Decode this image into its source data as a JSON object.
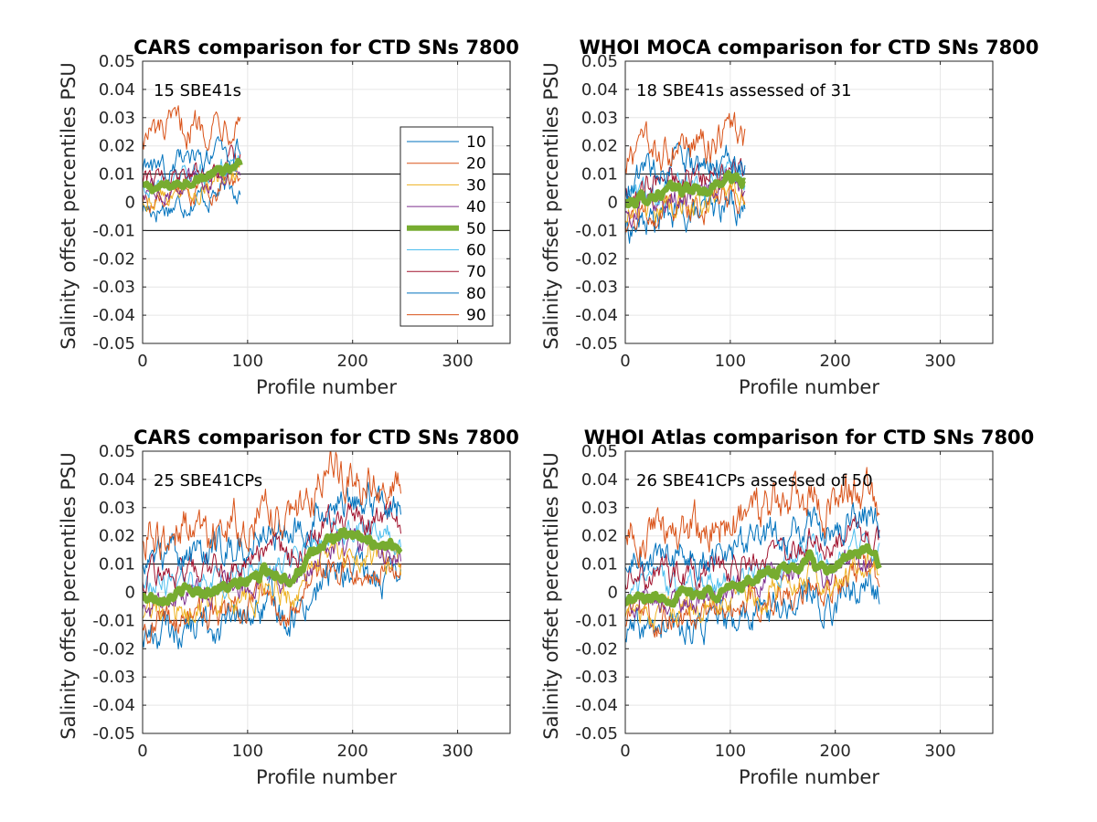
{
  "figure_type": "salinity offset percentile panels",
  "chart_data": [
    {
      "type": "line",
      "title": "CARS comparison for CTD SNs 7800",
      "annotation": "15 SBE41s",
      "xlabel": "Profile number",
      "ylabel": "Salinity offset percentiles PSU",
      "xlim": [
        0,
        350
      ],
      "ylim": [
        -0.05,
        0.05
      ],
      "xticks": [
        "0",
        "100",
        "200",
        "300"
      ],
      "yticks": [
        "-0.05",
        "-0.04",
        "-0.03",
        "-0.02",
        "-0.01",
        "0",
        "0.01",
        "0.02",
        "0.03",
        "0.04",
        "0.05"
      ],
      "reference_lines": [
        -0.01,
        0.01
      ],
      "grid": true,
      "legend_position": "right",
      "show_legend": true,
      "n_profiles": 93,
      "median_profile": [
        [
          0,
          0.005
        ],
        [
          15,
          0.005
        ],
        [
          30,
          0.006
        ],
        [
          45,
          0.008
        ],
        [
          60,
          0.009
        ],
        [
          75,
          0.011
        ],
        [
          85,
          0.011
        ],
        [
          93,
          0.013
        ]
      ],
      "percentile_offsets": {
        "10": -0.007,
        "20": -0.0045,
        "30": -0.003,
        "40": -0.0012,
        "60": 0.0015,
        "70": 0.003,
        "80": 0.007,
        "90": 0.019
      },
      "noise_amplitude": 0.0025
    },
    {
      "type": "line",
      "title": "WHOI MOCA comparison for CTD SNs 7800",
      "annotation": "18 SBE41s assessed of 31",
      "xlabel": "Profile number",
      "ylabel": "Salinity offset percentiles PSU",
      "xlim": [
        0,
        350
      ],
      "ylim": [
        -0.05,
        0.05
      ],
      "xticks": [
        "0",
        "100",
        "200",
        "300"
      ],
      "yticks": [
        "-0.05",
        "-0.04",
        "-0.03",
        "-0.02",
        "-0.01",
        "0",
        "0.01",
        "0.02",
        "0.03",
        "0.04",
        "0.05"
      ],
      "reference_lines": [
        -0.01,
        0.01
      ],
      "grid": true,
      "show_legend": false,
      "n_profiles": 114,
      "median_profile": [
        [
          0,
          -0.001
        ],
        [
          20,
          0.002
        ],
        [
          40,
          0.004
        ],
        [
          60,
          0.005
        ],
        [
          75,
          0.004
        ],
        [
          90,
          0.007
        ],
        [
          100,
          0.009
        ],
        [
          114,
          0.007
        ]
      ],
      "percentile_offsets": {
        "10": -0.009,
        "20": -0.006,
        "30": -0.004,
        "40": -0.0015,
        "60": 0.0015,
        "70": 0.004,
        "80": 0.008,
        "90": 0.015
      },
      "noise_amplitude": 0.003
    },
    {
      "type": "line",
      "title": "CARS comparison for CTD SNs 7800",
      "annotation": "25 SBE41CPs",
      "xlabel": "Profile number",
      "ylabel": "Salinity offset percentiles PSU",
      "xlim": [
        0,
        350
      ],
      "ylim": [
        -0.05,
        0.05
      ],
      "xticks": [
        "0",
        "100",
        "200",
        "300"
      ],
      "yticks": [
        "-0.05",
        "-0.04",
        "-0.03",
        "-0.02",
        "-0.01",
        "0",
        "0.01",
        "0.02",
        "0.03",
        "0.04",
        "0.05"
      ],
      "reference_lines": [
        -0.01,
        0.01
      ],
      "grid": true,
      "show_legend": false,
      "n_profiles": 246,
      "median_profile": [
        [
          0,
          -0.002
        ],
        [
          40,
          0.0
        ],
        [
          90,
          0.002
        ],
        [
          120,
          0.008
        ],
        [
          140,
          0.005
        ],
        [
          160,
          0.012
        ],
        [
          180,
          0.02
        ],
        [
          200,
          0.019
        ],
        [
          220,
          0.018
        ],
        [
          246,
          0.016
        ]
      ],
      "percentile_offsets": {
        "10": -0.013,
        "20": -0.009,
        "30": -0.006,
        "40": -0.003,
        "60": 0.003,
        "70": 0.007,
        "80": 0.014,
        "90": 0.022
      },
      "noise_amplitude": 0.003
    },
    {
      "type": "line",
      "title": "WHOI Atlas comparison for CTD SNs 7800",
      "annotation": "26 SBE41CPs assessed of 50",
      "xlabel": "Profile number",
      "ylabel": "Salinity offset percentiles PSU",
      "xlim": [
        0,
        350
      ],
      "ylim": [
        -0.05,
        0.05
      ],
      "xticks": [
        "0",
        "100",
        "200",
        "300"
      ],
      "yticks": [
        "-0.05",
        "-0.04",
        "-0.03",
        "-0.02",
        "-0.01",
        "0",
        "0.01",
        "0.02",
        "0.03",
        "0.04",
        "0.05"
      ],
      "reference_lines": [
        -0.01,
        0.01
      ],
      "grid": true,
      "show_legend": false,
      "n_profiles": 242,
      "median_profile": [
        [
          0,
          -0.003
        ],
        [
          50,
          -0.001
        ],
        [
          100,
          0.001
        ],
        [
          130,
          0.006
        ],
        [
          160,
          0.008
        ],
        [
          175,
          0.012
        ],
        [
          190,
          0.006
        ],
        [
          210,
          0.012
        ],
        [
          230,
          0.014
        ],
        [
          242,
          0.011
        ]
      ],
      "percentile_offsets": {
        "10": -0.012,
        "20": -0.008,
        "30": -0.005,
        "40": -0.002,
        "60": 0.003,
        "70": 0.007,
        "80": 0.013,
        "90": 0.023
      },
      "noise_amplitude": 0.003
    }
  ],
  "legend": {
    "entries": [
      "10",
      "20",
      "30",
      "40",
      "50",
      "60",
      "70",
      "80",
      "90"
    ]
  },
  "series_colors": {
    "10": "#0072BD",
    "20": "#D95319",
    "30": "#EDB120",
    "40": "#7E2F8E",
    "50": "#77AC30",
    "60": "#4DBEEE",
    "70": "#A2142F",
    "80": "#0072BD",
    "90": "#D95319"
  },
  "median_series": "50"
}
